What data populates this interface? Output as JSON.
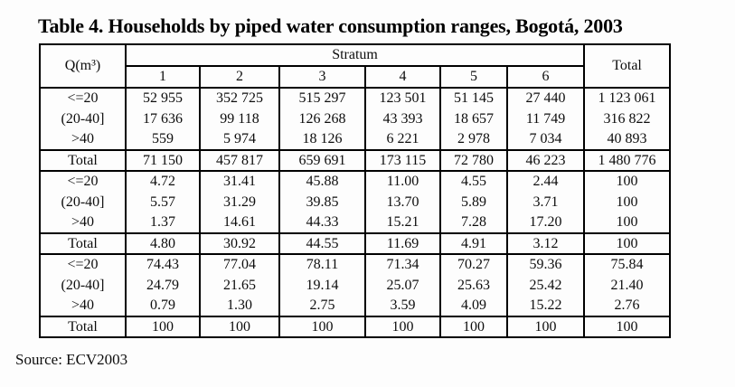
{
  "title": "Table 4. Households by piped water consumption ranges, Bogotá, 2003",
  "source": "Source: ECV2003",
  "chart_data": {
    "type": "table",
    "title": "Table 4. Households by piped water consumption ranges, Bogotá, 2003",
    "corner_header": "Q(m³)",
    "group_header": "Stratum",
    "total_header": "Total",
    "stratum_columns": [
      "1",
      "2",
      "3",
      "4",
      "5",
      "6"
    ],
    "blocks": [
      {
        "rows": [
          {
            "label": "<=20",
            "values": [
              "52 955",
              "352 725",
              "515 297",
              "123 501",
              "51 145",
              "27 440",
              "1 123 061"
            ]
          },
          {
            "label": "(20-40]",
            "values": [
              "17 636",
              "99 118",
              "126 268",
              "43 393",
              "18 657",
              "11 749",
              "316 822"
            ]
          },
          {
            "label": ">40",
            "values": [
              "559",
              "5 974",
              "18 126",
              "6 221",
              "2 978",
              "7 034",
              "40 893"
            ]
          }
        ],
        "total": {
          "label": "Total",
          "values": [
            "71 150",
            "457 817",
            "659 691",
            "173 115",
            "72 780",
            "46 223",
            "1 480 776"
          ]
        }
      },
      {
        "rows": [
          {
            "label": "<=20",
            "values": [
              "4.72",
              "31.41",
              "45.88",
              "11.00",
              "4.55",
              "2.44",
              "100"
            ]
          },
          {
            "label": "(20-40]",
            "values": [
              "5.57",
              "31.29",
              "39.85",
              "13.70",
              "5.89",
              "3.71",
              "100"
            ]
          },
          {
            "label": ">40",
            "values": [
              "1.37",
              "14.61",
              "44.33",
              "15.21",
              "7.28",
              "17.20",
              "100"
            ]
          }
        ],
        "total": {
          "label": "Total",
          "values": [
            "4.80",
            "30.92",
            "44.55",
            "11.69",
            "4.91",
            "3.12",
            "100"
          ]
        }
      },
      {
        "rows": [
          {
            "label": "<=20",
            "values": [
              "74.43",
              "77.04",
              "78.11",
              "71.34",
              "70.27",
              "59.36",
              "75.84"
            ]
          },
          {
            "label": "(20-40]",
            "values": [
              "24.79",
              "21.65",
              "19.14",
              "25.07",
              "25.63",
              "25.42",
              "21.40"
            ]
          },
          {
            "label": ">40",
            "values": [
              "0.79",
              "1.30",
              "2.75",
              "3.59",
              "4.09",
              "15.22",
              "2.76"
            ]
          }
        ],
        "total": {
          "label": "Total",
          "values": [
            "100",
            "100",
            "100",
            "100",
            "100",
            "100",
            "100"
          ]
        }
      }
    ]
  }
}
